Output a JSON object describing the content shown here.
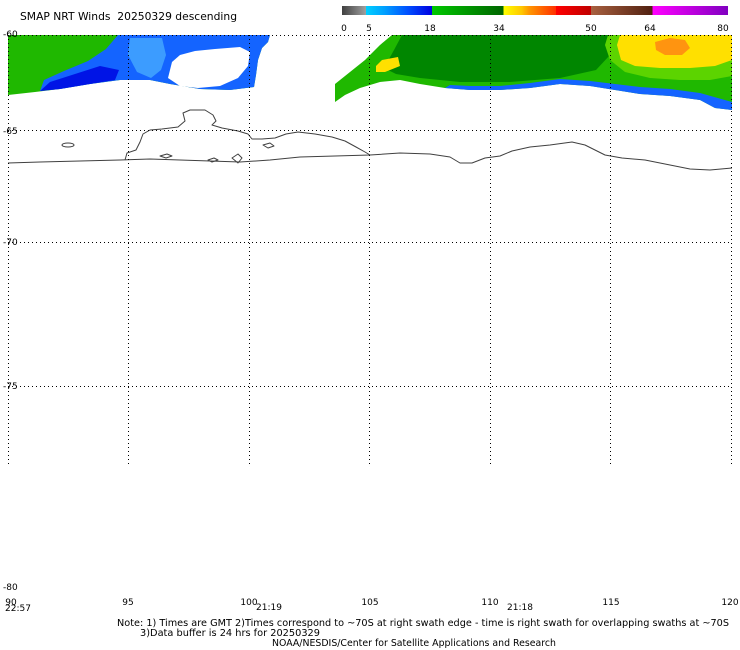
{
  "title": "SMAP NRT Winds  20250329 descending",
  "colorbar": {
    "labels": [
      "0",
      "5",
      "18",
      "34",
      "50",
      "64",
      "80"
    ],
    "colors": [
      "#404040",
      "#a0a0a0",
      "#00d0ff",
      "#00a0ff",
      "#0050ff",
      "#0000e0",
      "#00c800",
      "#006400",
      "#ffff00",
      "#ffc800",
      "#ff9600",
      "#ff3000",
      "#ff0000",
      "#c00000",
      "#a86040",
      "#502010",
      "#ff00ff",
      "#8000c0"
    ]
  },
  "map": {
    "lat_labels": [
      "-60",
      "-65",
      "-70",
      "-75",
      "-80"
    ],
    "lon_labels": [
      "90",
      "95",
      "100",
      "105",
      "110",
      "115",
      "120"
    ],
    "times": [
      "22:57",
      "21:19",
      "21:18"
    ],
    "palette": {
      "background": "#ffffff",
      "green": "#1fb800",
      "green_dark": "#008600",
      "green_light": "#5cd400",
      "blue": "#1464ff",
      "blue_light": "#3c9cff",
      "blue_dark": "#0014e6",
      "yellow": "#ffe000",
      "orange": "#ff9410",
      "coast": "#404040",
      "grid": "#000000"
    }
  },
  "notes": [
    "Note: 1) Times are GMT 2)Times correspond to ~70S at right swath edge - time is right swath for overlapping swaths at ~70S",
    "3)Data buffer is 24 hrs for 20250329",
    "NOAA/NESDIS/Center for Satellite Applications and Research"
  ]
}
